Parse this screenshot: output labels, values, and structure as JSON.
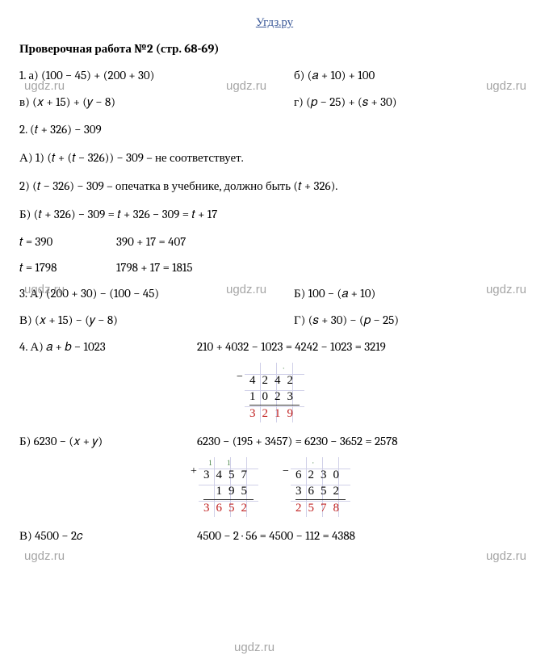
{
  "header": {
    "site": "Угдз.ру"
  },
  "title": "Проверочная работа №2 (стр. 68-69)",
  "p1": {
    "a": "1. а) (100 − 45) + (200 + 30)",
    "b": "б) (𝑎 + 10) + 100",
    "v": "в) (𝑥 + 15) + (𝑦 − 8)",
    "g": "г) (𝑝 − 25) + (𝑠 + 30)"
  },
  "p2": {
    "head": "2. (𝑡 + 326) − 309",
    "a1": "А) 1) (𝑡 + (𝑡 − 326)) − 309 – не соответствует.",
    "a2": "2) (𝑡 − 326) − 309 – опечатка в учебнике, должно быть (𝑡 + 326).",
    "b": "Б) (𝑡 + 326) − 309 = 𝑡 + 326 − 309 = 𝑡 + 17",
    "t1_label": "𝑡 = 390",
    "t1_val": "390 + 17 = 407",
    "t2_label": "𝑡 = 1798",
    "t2_val": "1798 + 17 = 1815"
  },
  "p3": {
    "a": "3. А) (200 + 30) − (100 − 45)",
    "b": "Б) 100 − (𝑎 + 10)",
    "v": "В) (𝑥 + 15) − (𝑦 − 8)",
    "g": "Г) (𝑠 + 30) − (𝑝 − 25)"
  },
  "p4": {
    "a_left": "4. А) 𝑎 + 𝑏 − 1023",
    "a_right": "210 + 4032 − 1023 = 4242 − 1023 = 3219",
    "b_left": "Б) 6230 − (𝑥 + 𝑦)",
    "b_right": "6230 − (195 + 3457) = 6230 − 3652 = 2578",
    "c_left": "В) 4500 − 2𝑐",
    "c_right": "4500 − 2 · 56 = 4500 − 112 = 4388"
  },
  "arith": {
    "block1": {
      "sign": "−",
      "carry": "   · ",
      "r1": "4242",
      "r2": "1023",
      "res": "3219",
      "sign_color": "#333333"
    },
    "block2": {
      "sign": "+",
      "carry": "1 1  ",
      "r1": "3457",
      "r2": " 195",
      "res": "3652",
      "sign_color": "#333333"
    },
    "block3": {
      "sign": "−",
      "carry": "·   ",
      "r1": "6230",
      "r2": "3652",
      "res": "2578",
      "sign_color": "#333333"
    }
  },
  "watermarks": {
    "text": "ugdz.ru"
  },
  "colors": {
    "link": "#3b5998",
    "text": "#000000",
    "result": "#c02020",
    "watermark": "#888888",
    "grid": "#d0d0e8",
    "bg": "#ffffff"
  }
}
